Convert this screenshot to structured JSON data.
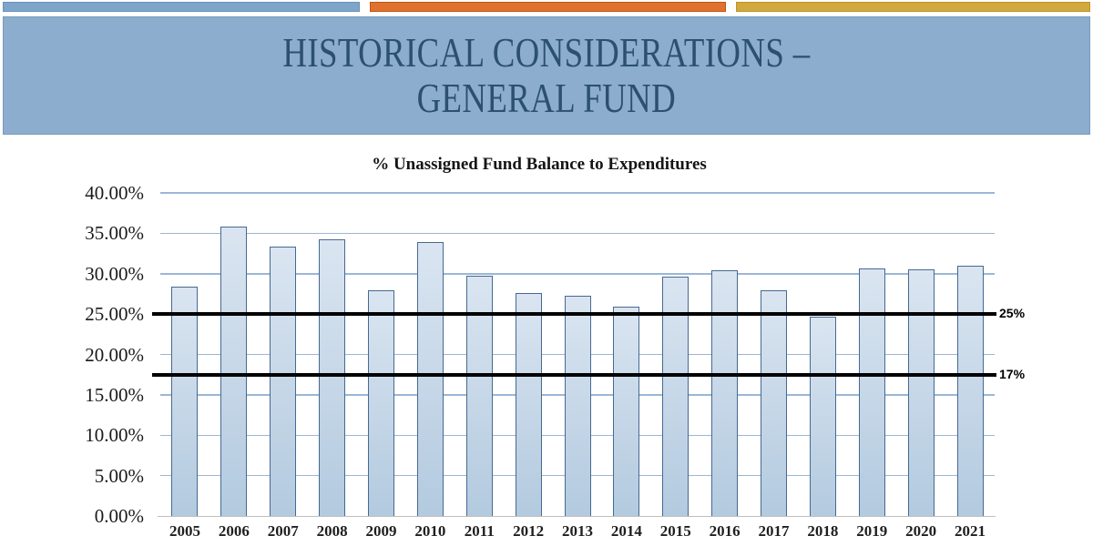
{
  "slide": {
    "accent_bars": [
      {
        "name": "blue",
        "fill": "#7EA6CB",
        "border": "#6A92B8"
      },
      {
        "name": "orange",
        "fill": "#E0712E",
        "border": "#BC5712"
      },
      {
        "name": "gold",
        "fill": "#D2A93E",
        "border": "#BC9428"
      }
    ],
    "banner": {
      "fill": "#8CADCD",
      "border": "#769CBF",
      "text_color": "#2B5070",
      "title_line1": "HISTORICAL CONSIDERATIONS –",
      "title_line2": "GENERAL FUND"
    }
  },
  "chart_data": {
    "type": "bar",
    "title": "% Unassigned Fund Balance to Expenditures",
    "categories": [
      "2005",
      "2006",
      "2007",
      "2008",
      "2009",
      "2010",
      "2011",
      "2012",
      "2013",
      "2014",
      "2015",
      "2016",
      "2017",
      "2018",
      "2019",
      "2020",
      "2021"
    ],
    "values": [
      28.4,
      35.8,
      33.3,
      34.3,
      28.0,
      33.9,
      29.7,
      27.6,
      27.3,
      25.9,
      29.6,
      30.4,
      28.0,
      24.7,
      30.7,
      30.5,
      31.0
    ],
    "xlabel": "",
    "ylabel": "",
    "ylim": [
      0,
      40
    ],
    "ytick_step": 5,
    "ytick_labels": [
      "0.00%",
      "5.00%",
      "10.00%",
      "15.00%",
      "20.00%",
      "25.00%",
      "30.00%",
      "35.00%",
      "40.00%"
    ],
    "grid": true,
    "legend": "none",
    "reference_lines": [
      {
        "label": "25%",
        "value": 25,
        "drawn_at": 25
      },
      {
        "label": "17%",
        "value": 17,
        "drawn_at": 17.5
      }
    ],
    "colors": {
      "bar_fill_top": "#DAE5F1",
      "bar_fill_bottom": "#B3CADF",
      "bar_border": "#466992",
      "gridline": "#9BB7D5",
      "axis_line": "#BFBFBF",
      "reference_line": "#000000"
    }
  }
}
